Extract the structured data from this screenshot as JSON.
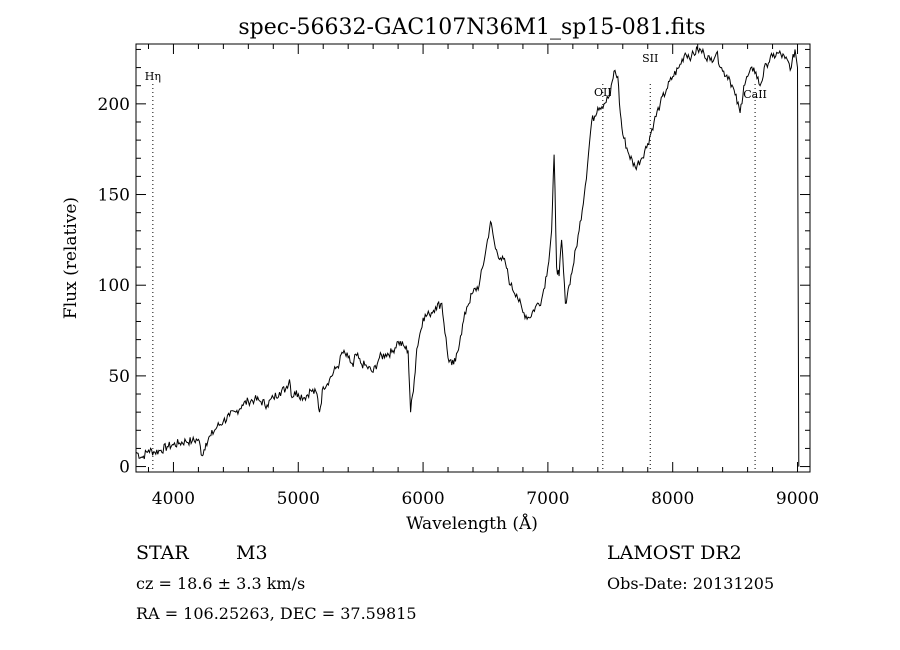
{
  "chart_data": {
    "type": "line",
    "title": "spec-56632-GAC107N36M1_sp15-081.fits",
    "xlabel": "Wavelength (Å)",
    "ylabel": "Flux (relative)",
    "xlim": [
      3700,
      9100
    ],
    "ylim": [
      -3,
      233
    ],
    "x_ticks": [
      4000,
      5000,
      6000,
      7000,
      8000,
      9000
    ],
    "x_tick_labels": [
      "4000",
      "5000",
      "6000",
      "7000",
      "8000",
      "9000"
    ],
    "y_ticks": [
      0,
      50,
      100,
      150,
      200
    ],
    "y_tick_labels": [
      "0",
      "50",
      "100",
      "150",
      "200"
    ],
    "grid": false,
    "lines": [
      {
        "label": "Hη",
        "x": 3835
      },
      {
        "label": "OII",
        "x": 7440
      },
      {
        "label": "SII",
        "x": 7820
      },
      {
        "label": "CaII",
        "x": 8660
      }
    ],
    "series": [
      {
        "name": "spectrum",
        "x": [
          3700,
          3750,
          3800,
          3850,
          3900,
          3950,
          4000,
          4050,
          4100,
          4150,
          4200,
          4230,
          4260,
          4300,
          4350,
          4400,
          4450,
          4500,
          4550,
          4600,
          4650,
          4700,
          4750,
          4800,
          4850,
          4900,
          4930,
          4950,
          4970,
          5000,
          5050,
          5100,
          5150,
          5170,
          5200,
          5250,
          5300,
          5330,
          5350,
          5400,
          5440,
          5460,
          5500,
          5550,
          5600,
          5650,
          5700,
          5750,
          5800,
          5850,
          5880,
          5900,
          5930,
          5950,
          6000,
          6050,
          6100,
          6150,
          6200,
          6230,
          6260,
          6300,
          6350,
          6400,
          6450,
          6500,
          6540,
          6560,
          6580,
          6620,
          6660,
          6700,
          6750,
          6800,
          6850,
          6900,
          6950,
          7000,
          7030,
          7050,
          7070,
          7090,
          7110,
          7140,
          7170,
          7200,
          7250,
          7300,
          7350,
          7400,
          7450,
          7500,
          7530,
          7560,
          7580,
          7600,
          7650,
          7700,
          7750,
          7800,
          7850,
          7900,
          7950,
          8000,
          8050,
          8100,
          8150,
          8200,
          8250,
          8300,
          8350,
          8400,
          8450,
          8500,
          8540,
          8570,
          8600,
          8650,
          8700,
          8750,
          8800,
          8850,
          8900,
          8950,
          8980,
          9000,
          9010
        ],
        "y": [
          8,
          5,
          9,
          8,
          9,
          11,
          12,
          13,
          14,
          14,
          15,
          6,
          13,
          17,
          22,
          25,
          28,
          30,
          34,
          36,
          37,
          36,
          34,
          38,
          41,
          43,
          48,
          38,
          41,
          40,
          38,
          42,
          40,
          30,
          44,
          48,
          54,
          57,
          63,
          60,
          55,
          62,
          57,
          55,
          52,
          60,
          62,
          63,
          69,
          66,
          64,
          30,
          48,
          65,
          82,
          84,
          88,
          90,
          60,
          56,
          58,
          72,
          88,
          96,
          100,
          118,
          135,
          128,
          120,
          115,
          112,
          100,
          95,
          85,
          82,
          88,
          92,
          110,
          130,
          172,
          110,
          105,
          125,
          90,
          100,
          110,
          130,
          155,
          190,
          198,
          200,
          205,
          218,
          215,
          195,
          183,
          172,
          165,
          170,
          178,
          190,
          200,
          208,
          215,
          220,
          228,
          226,
          230,
          228,
          224,
          228,
          218,
          215,
          205,
          195,
          210,
          215,
          220,
          210,
          222,
          226,
          228,
          225,
          220,
          230,
          220,
          0
        ],
        "color": "#000000"
      }
    ]
  },
  "info": {
    "class": "STAR",
    "subclass": "M3",
    "survey": "LAMOST DR2",
    "cz": "cz = 18.6 ± 3.3 km/s",
    "obs_date": "Obs-Date: 20131205",
    "coords": "RA = 106.25263, DEC =  37.59815"
  }
}
